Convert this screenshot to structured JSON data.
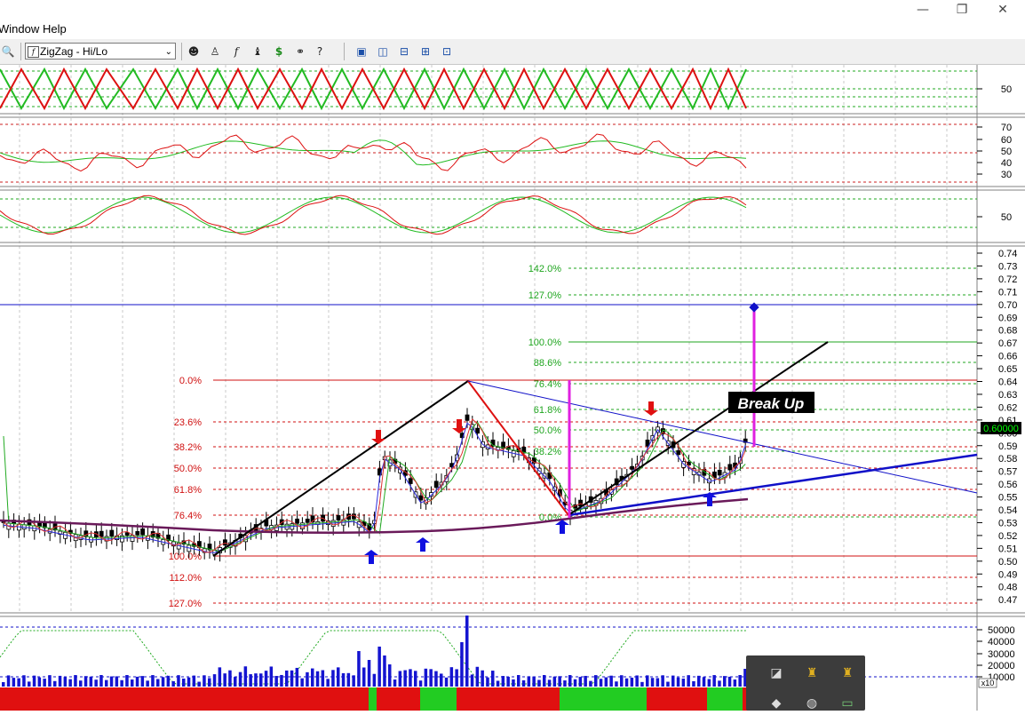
{
  "menu": {
    "window": "Window",
    "help": "Help"
  },
  "toolbar": {
    "indicator_select": "ZigZag - Hi/Lo",
    "icons": [
      "zoom-icon",
      "indicator-icon",
      "investigator-icon",
      "function-icon",
      "strategy-icon",
      "dollar-icon",
      "binoculars-icon",
      "help-pointer-icon",
      "layout-cascade-icon",
      "layout-tile-vertical-icon",
      "layout-tile-horizontal-icon",
      "layout-grid-icon",
      "layout-custom-icon"
    ]
  },
  "panes": {
    "zigzag_axis": [
      "50"
    ],
    "rsi_axis": [
      "70",
      "60",
      "50",
      "40",
      "30"
    ],
    "stoch_axis": [
      "50"
    ],
    "price_axis": [
      "0.74",
      "0.73",
      "0.72",
      "0.71",
      "0.70",
      "0.69",
      "0.68",
      "0.67",
      "0.66",
      "0.65",
      "0.64",
      "0.63",
      "0.62",
      "0.61",
      "0.60",
      "0.59",
      "0.58",
      "0.57",
      "0.56",
      "0.55",
      "0.54",
      "0.53",
      "0.52",
      "0.51",
      "0.50",
      "0.49",
      "0.48",
      "0.47"
    ],
    "current_price": "0.60000",
    "volume_axis": [
      "50000",
      "40000",
      "30000",
      "20000",
      "10000"
    ],
    "volume_multiplier": "x10"
  },
  "fib_left": [
    "0.0%",
    "23.6%",
    "38.2%",
    "50.0%",
    "61.8%",
    "76.4%",
    "100.0%",
    "112.0%",
    "127.0%"
  ],
  "fib_right": [
    "142.0%",
    "127.0%",
    "100.0%",
    "88.6%",
    "76.4%",
    "61.8%",
    "50.0%",
    "38.2%",
    "0.0%"
  ],
  "annotation": {
    "break_label": "Break Up"
  },
  "colors": {
    "fib_red": "#d01010",
    "fib_green": "#1fa51f",
    "trend_blue": "#1010c8",
    "magenta": "#e020e0",
    "zig_green": "#22bb22",
    "zig_red": "#dd1111"
  }
}
